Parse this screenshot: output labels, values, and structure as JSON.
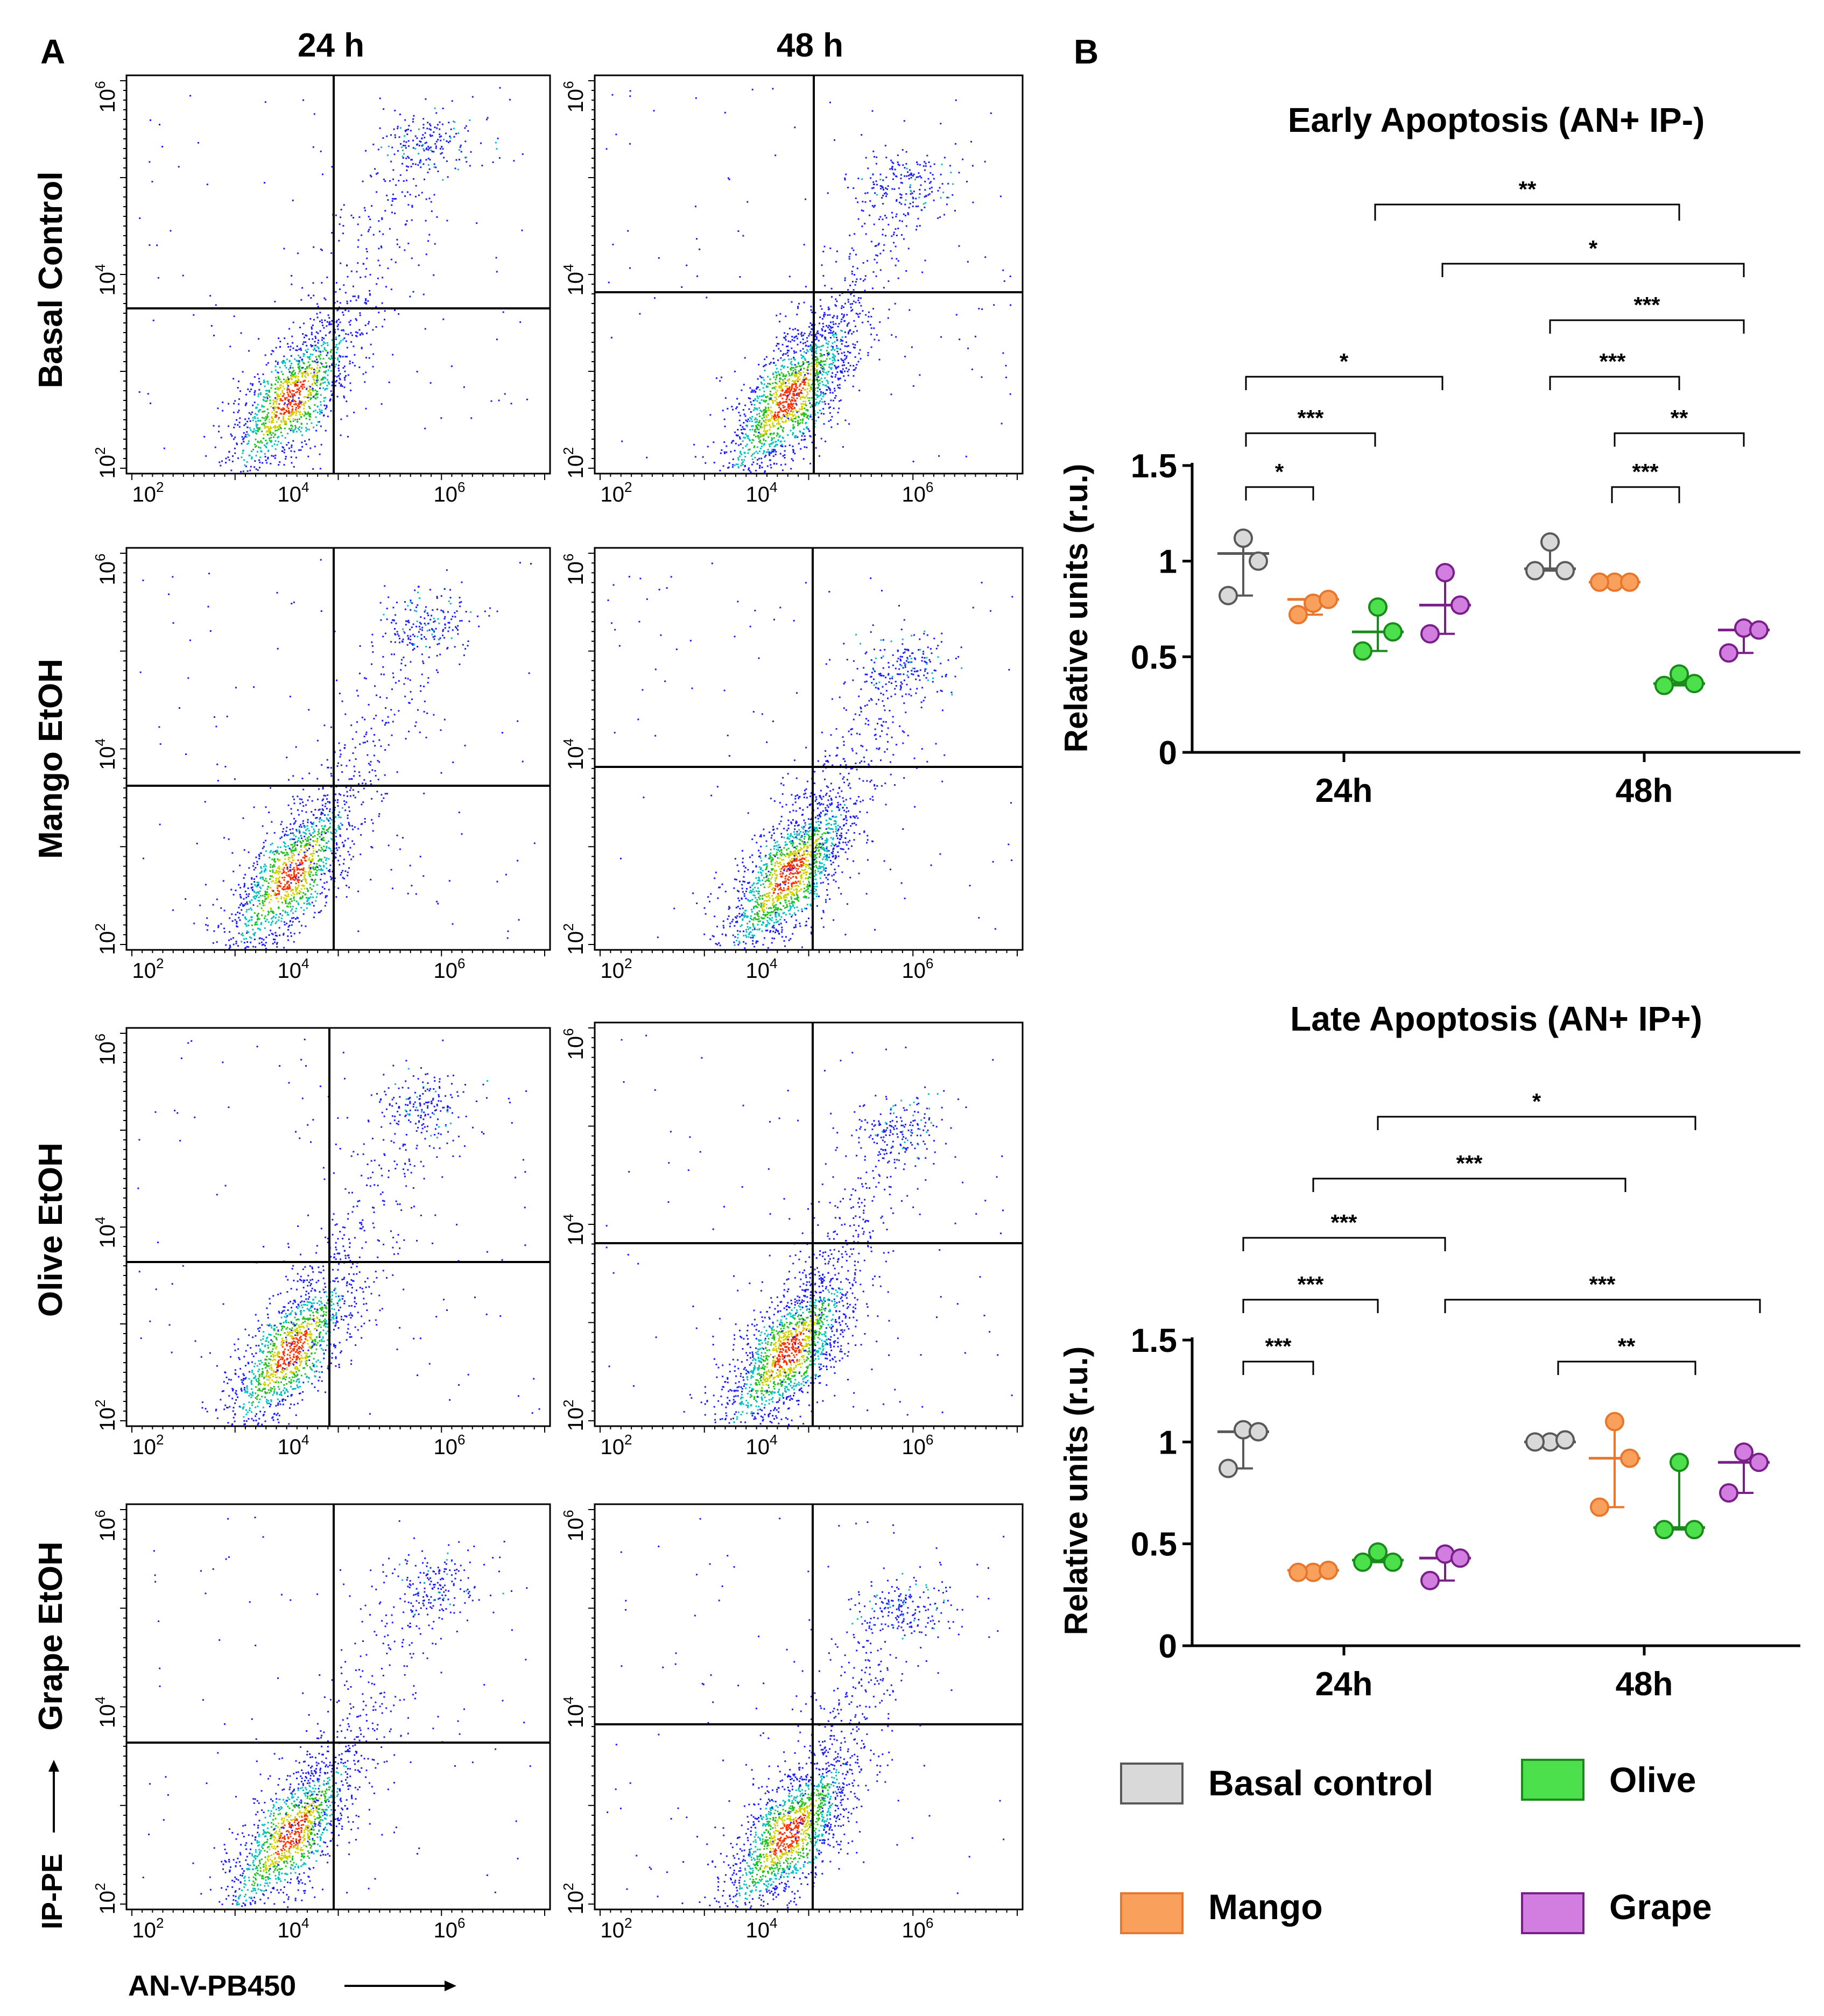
{
  "panel_a": {
    "label": "A",
    "columns": [
      "24 h",
      "48 h"
    ],
    "rows": [
      "Basal Control",
      "Mango EtOH",
      "Olive EtOH",
      "Grape EtOH"
    ],
    "x_ticks": [
      "10",
      "10",
      "10"
    ],
    "x_tick_exps": [
      "2",
      "4",
      "6"
    ],
    "y_ticks": [
      "10",
      "10",
      "10"
    ],
    "y_tick_exps": [
      "2",
      "4",
      "6"
    ],
    "y_axis_label": "IP-PE",
    "x_axis_label": "AN-V-PB450",
    "colors": {
      "low": "#1c1cff",
      "mid": "#00c0c0",
      "high": "#ff3000",
      "midhigh": "#d0d000",
      "green": "#20c020"
    }
  },
  "panel_b": {
    "label": "B",
    "legend": [
      {
        "name": "Basal control",
        "fill": "#d9d9d9",
        "stroke": "#595959"
      },
      {
        "name": "Olive",
        "fill": "#4ce04c",
        "stroke": "#1a8a1a"
      },
      {
        "name": "Mango",
        "fill": "#f9a15c",
        "stroke": "#e8772e"
      },
      {
        "name": "Grape",
        "fill": "#d17ee0",
        "stroke": "#7a1f8a"
      }
    ]
  },
  "chart_data": [
    {
      "type": "scatter",
      "title": "Early Apoptosis (AN+ IP-)",
      "xlabel": "",
      "ylabel": "Relative units (r.u.)",
      "ylim": [
        0,
        1.5
      ],
      "y_ticks": [
        "0",
        "0.5",
        "1",
        "1.5"
      ],
      "categories": [
        "24h",
        "48h"
      ],
      "series": [
        {
          "name": "Basal control",
          "points": [
            [
              1.12,
              1.0,
              0.82
            ],
            [
              1.1,
              0.95,
              0.95
            ]
          ],
          "median": [
            1.04,
            0.96
          ]
        },
        {
          "name": "Mango",
          "points": [
            [
              0.78,
              0.8,
              0.72
            ],
            [
              0.89,
              0.89,
              0.89
            ]
          ],
          "median": [
            0.8,
            0.89
          ]
        },
        {
          "name": "Olive",
          "points": [
            [
              0.76,
              0.63,
              0.53
            ],
            [
              0.41,
              0.36,
              0.35
            ]
          ],
          "median": [
            0.63,
            0.36
          ]
        },
        {
          "name": "Grape",
          "points": [
            [
              0.94,
              0.77,
              0.62
            ],
            [
              0.65,
              0.64,
              0.52
            ]
          ],
          "median": [
            0.77,
            0.64
          ]
        }
      ],
      "significance": [
        {
          "label": "*",
          "from": "24h Basal control",
          "to": "24h Mango"
        },
        {
          "label": "***",
          "from": "24h Basal control",
          "to": "24h Olive"
        },
        {
          "label": "*",
          "from": "24h Basal control",
          "to": "24h Grape"
        },
        {
          "label": "***",
          "from": "48h Mango",
          "to": "48h Olive"
        },
        {
          "label": "**",
          "from": "48h Mango",
          "to": "48h Grape"
        },
        {
          "label": "***",
          "from": "48h Basal control",
          "to": "48h Olive"
        },
        {
          "label": "***",
          "from": "48h Basal control",
          "to": "48h Grape"
        },
        {
          "label": "*",
          "from": "24h Grape",
          "to": "48h Grape"
        },
        {
          "label": "**",
          "from": "24h Olive",
          "to": "48h Olive"
        }
      ]
    },
    {
      "type": "scatter",
      "title": "Late Apoptosis (AN+ IP+)",
      "xlabel": "",
      "ylabel": "Relative units (r.u.)",
      "ylim": [
        0,
        1.5
      ],
      "y_ticks": [
        "0",
        "0.5",
        "1",
        "1.5"
      ],
      "categories": [
        "24h",
        "48h"
      ],
      "series": [
        {
          "name": "Basal control",
          "points": [
            [
              1.06,
              1.05,
              0.87
            ],
            [
              1.0,
              1.01,
              1.0
            ]
          ],
          "median": [
            1.05,
            1.0
          ]
        },
        {
          "name": "Mango",
          "points": [
            [
              0.36,
              0.37,
              0.36
            ],
            [
              1.1,
              0.92,
              0.68
            ]
          ],
          "median": [
            0.37,
            0.92
          ]
        },
        {
          "name": "Olive",
          "points": [
            [
              0.46,
              0.41,
              0.41
            ],
            [
              0.9,
              0.57,
              0.57
            ]
          ],
          "median": [
            0.42,
            0.58
          ]
        },
        {
          "name": "Grape",
          "points": [
            [
              0.45,
              0.43,
              0.32
            ],
            [
              0.95,
              0.9,
              0.75
            ]
          ],
          "median": [
            0.43,
            0.9
          ]
        }
      ],
      "significance": [
        {
          "label": "***",
          "from": "24h Basal control",
          "to": "24h Mango"
        },
        {
          "label": "***",
          "from": "24h Basal control",
          "to": "24h Olive"
        },
        {
          "label": "***",
          "from": "24h Basal control",
          "to": "24h Grape"
        },
        {
          "label": "***",
          "from": "24h Grape",
          "to": "48h Grape"
        },
        {
          "label": "**",
          "from": "48h Basal control",
          "to": "48h Olive"
        },
        {
          "label": "***",
          "from": "24h Mango",
          "to": "48h Mango"
        },
        {
          "label": "*",
          "from": "24h Olive",
          "to": "48h Olive"
        }
      ]
    }
  ]
}
